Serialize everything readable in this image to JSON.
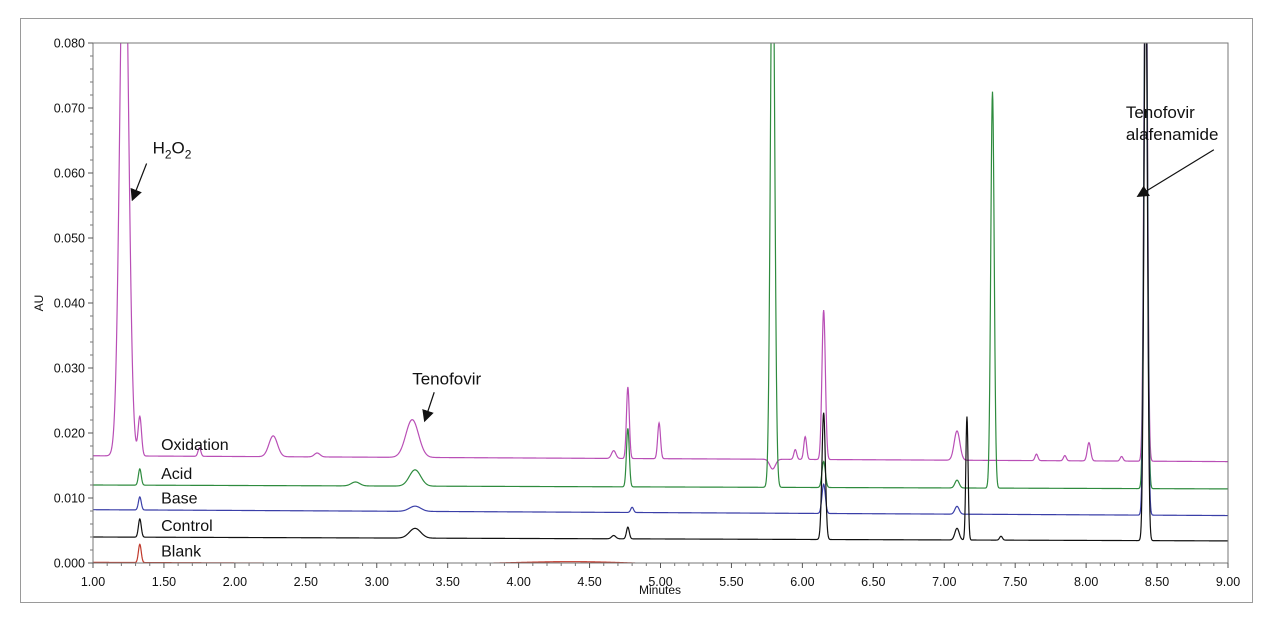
{
  "chart_data": {
    "type": "line",
    "xlabel": "Minutes",
    "ylabel": "AU",
    "xlim": [
      1.0,
      9.0
    ],
    "ylim": [
      0.0,
      0.08
    ],
    "x_ticks": [
      "1.00",
      "1.50",
      "2.00",
      "2.50",
      "3.00",
      "3.50",
      "4.00",
      "4.50",
      "5.00",
      "5.50",
      "6.00",
      "6.50",
      "7.00",
      "7.50",
      "8.00",
      "8.50",
      "9.00"
    ],
    "y_ticks": [
      "0.000",
      "0.010",
      "0.020",
      "0.030",
      "0.040",
      "0.050",
      "0.060",
      "0.070",
      "0.080"
    ],
    "series": [
      {
        "name": "Oxidation",
        "color": "#b94fb6",
        "offset": 0.0165,
        "drift": -0.0009,
        "peaks": [
          {
            "x": 1.22,
            "h": 0.09,
            "w": 0.03
          },
          {
            "x": 1.33,
            "h": 0.006,
            "w": 0.012
          },
          {
            "x": 1.75,
            "h": 0.0013,
            "w": 0.01
          },
          {
            "x": 2.27,
            "h": 0.0032,
            "w": 0.03
          },
          {
            "x": 2.58,
            "h": 0.0006,
            "w": 0.02
          },
          {
            "x": 3.25,
            "h": 0.0058,
            "w": 0.045
          },
          {
            "x": 4.67,
            "h": 0.0012,
            "w": 0.015
          },
          {
            "x": 4.77,
            "h": 0.011,
            "w": 0.01
          },
          {
            "x": 4.99,
            "h": 0.0055,
            "w": 0.01
          },
          {
            "x": 5.79,
            "h": -0.0015,
            "w": 0.02
          },
          {
            "x": 5.95,
            "h": 0.0015,
            "w": 0.01
          },
          {
            "x": 6.02,
            "h": 0.0035,
            "w": 0.01
          },
          {
            "x": 6.15,
            "h": 0.023,
            "w": 0.012
          },
          {
            "x": 7.09,
            "h": 0.0045,
            "w": 0.02
          },
          {
            "x": 7.65,
            "h": 0.001,
            "w": 0.01
          },
          {
            "x": 7.85,
            "h": 0.0008,
            "w": 0.01
          },
          {
            "x": 8.02,
            "h": 0.0028,
            "w": 0.012
          },
          {
            "x": 8.25,
            "h": 0.0007,
            "w": 0.01
          },
          {
            "x": 8.42,
            "h": 0.09,
            "w": 0.012
          }
        ]
      },
      {
        "name": "Acid",
        "color": "#2e8b3e",
        "offset": 0.012,
        "drift": -0.0006,
        "peaks": [
          {
            "x": 1.33,
            "h": 0.0025,
            "w": 0.01
          },
          {
            "x": 2.85,
            "h": 0.0006,
            "w": 0.03
          },
          {
            "x": 3.27,
            "h": 0.0025,
            "w": 0.04
          },
          {
            "x": 4.77,
            "h": 0.009,
            "w": 0.01
          },
          {
            "x": 5.79,
            "h": 0.09,
            "w": 0.015
          },
          {
            "x": 6.15,
            "h": 0.004,
            "w": 0.012
          },
          {
            "x": 7.09,
            "h": 0.0012,
            "w": 0.015
          },
          {
            "x": 7.34,
            "h": 0.061,
            "w": 0.012
          },
          {
            "x": 8.42,
            "h": 0.09,
            "w": 0.012
          }
        ]
      },
      {
        "name": "Base",
        "color": "#3a3fa8",
        "offset": 0.0082,
        "drift": -0.0009,
        "peaks": [
          {
            "x": 1.33,
            "h": 0.002,
            "w": 0.01
          },
          {
            "x": 3.27,
            "h": 0.0008,
            "w": 0.04
          },
          {
            "x": 4.8,
            "h": 0.0008,
            "w": 0.01
          },
          {
            "x": 6.15,
            "h": 0.0045,
            "w": 0.012
          },
          {
            "x": 7.09,
            "h": 0.0012,
            "w": 0.015
          },
          {
            "x": 8.42,
            "h": 0.09,
            "w": 0.012
          }
        ]
      },
      {
        "name": "Control",
        "color": "#111111",
        "offset": 0.004,
        "drift": -0.0006,
        "peaks": [
          {
            "x": 1.33,
            "h": 0.0028,
            "w": 0.01
          },
          {
            "x": 3.27,
            "h": 0.0015,
            "w": 0.04
          },
          {
            "x": 4.67,
            "h": 0.0005,
            "w": 0.015
          },
          {
            "x": 4.77,
            "h": 0.0018,
            "w": 0.01
          },
          {
            "x": 6.15,
            "h": 0.0195,
            "w": 0.012
          },
          {
            "x": 7.09,
            "h": 0.0018,
            "w": 0.015
          },
          {
            "x": 7.16,
            "h": 0.019,
            "w": 0.008
          },
          {
            "x": 7.4,
            "h": 0.0006,
            "w": 0.01
          },
          {
            "x": 8.42,
            "h": 0.09,
            "w": 0.012
          }
        ]
      },
      {
        "name": "Blank",
        "color": "#c0392b",
        "offset": 0.0001,
        "drift": -0.0007,
        "peaks": [
          {
            "x": 1.33,
            "h": 0.0028,
            "w": 0.01
          },
          {
            "x": 4.4,
            "h": 0.0004,
            "w": 0.4
          }
        ]
      }
    ],
    "annotations": [
      {
        "text": "H2O2",
        "x": 1.42,
        "y": 0.063,
        "arrow_to": [
          1.28,
          0.056
        ]
      },
      {
        "text": "Tenofovir",
        "x": 3.25,
        "y": 0.0275,
        "arrow_to": [
          3.34,
          0.022
        ]
      },
      {
        "text": "Tenofovir",
        "line2": "alafenamide",
        "x": 8.28,
        "y": 0.0685,
        "arrow_to": [
          8.37,
          0.0565
        ]
      }
    ]
  }
}
